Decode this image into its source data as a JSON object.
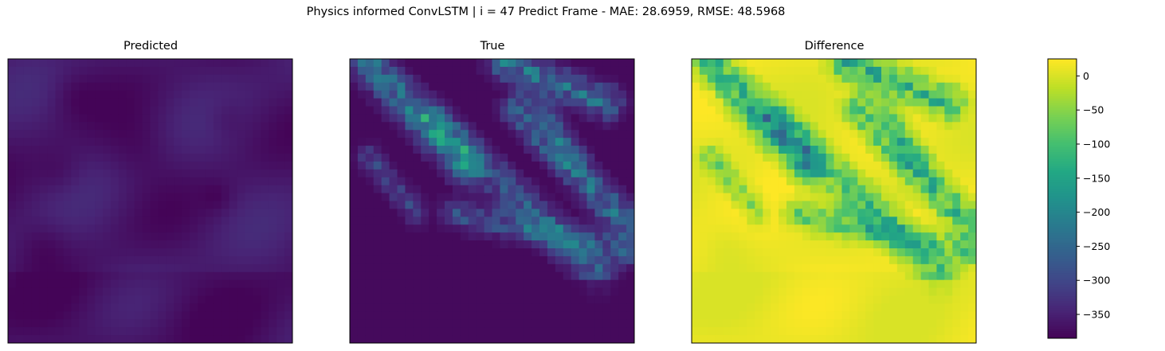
{
  "figure": {
    "suptitle": "Physics informed ConvLSTM | i = 47 Predict Frame - MAE: 28.6959, RMSE: 48.5968"
  },
  "chart_data": [
    {
      "type": "heatmap",
      "title": "Predicted",
      "grid_size": [
        36,
        36
      ],
      "colormap": "viridis",
      "xticks": false,
      "yticks": false,
      "description_values": "near-uniform low intensity field (~-360 to -330 on shared scale), faint smooth lighter blobs"
    },
    {
      "type": "heatmap",
      "title": "True",
      "grid_size": [
        36,
        36
      ],
      "colormap": "viridis",
      "xticks": false,
      "yticks": false
    },
    {
      "type": "heatmap",
      "title": "Difference",
      "grid_size": [
        36,
        36
      ],
      "colormap": "viridis",
      "clim": [
        -385,
        25
      ],
      "xticks": false,
      "yticks": false
    }
  ],
  "colorbar": {
    "colormap": "viridis",
    "range": [
      -385,
      25
    ],
    "ticks": [
      "0",
      "−50",
      "−100",
      "−150",
      "−200",
      "−250",
      "−300",
      "−350"
    ],
    "tick_values": [
      0,
      -50,
      -100,
      -150,
      -200,
      -250,
      -300,
      -350
    ]
  }
}
